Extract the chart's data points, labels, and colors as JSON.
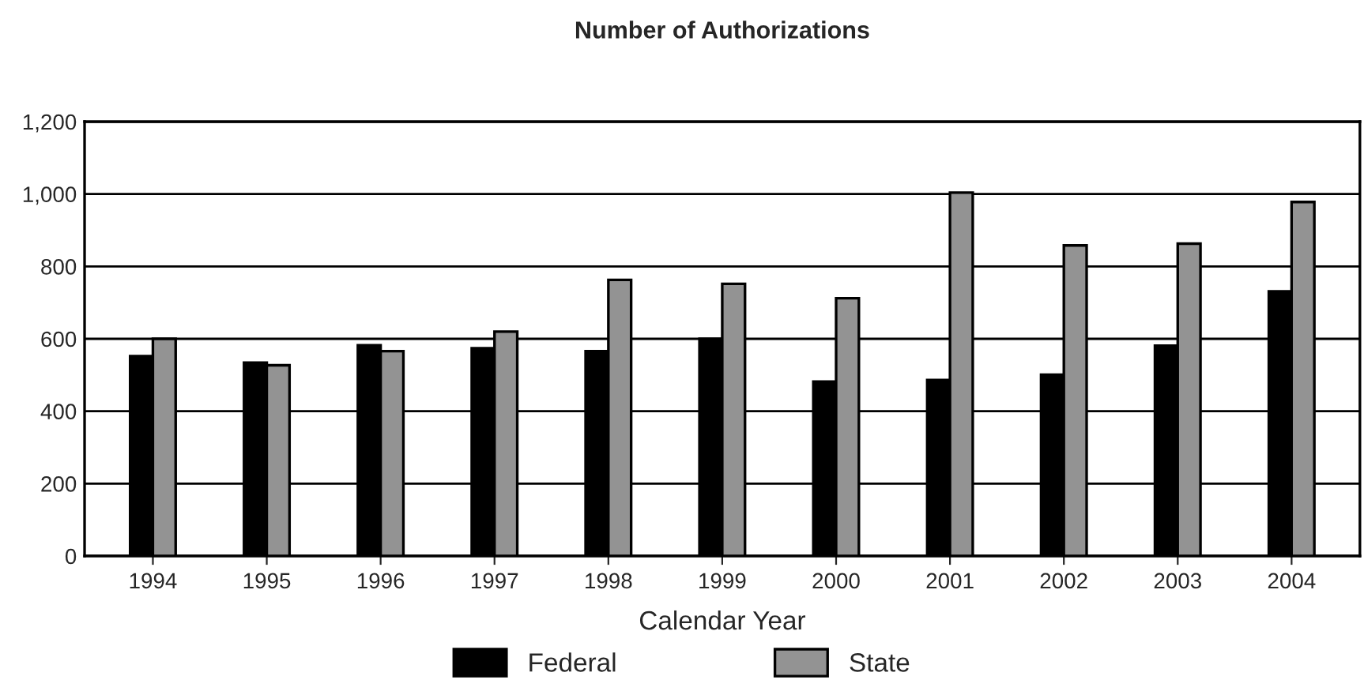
{
  "chart_data": {
    "type": "bar",
    "title": "Number of Authorizations",
    "xlabel": "Calendar Year",
    "categories": [
      "1994",
      "1995",
      "1996",
      "1997",
      "1998",
      "1999",
      "2000",
      "2001",
      "2002",
      "2003",
      "2004"
    ],
    "series": [
      {
        "name": "Federal",
        "color": "#000000",
        "values": [
          552,
          534,
          582,
          574,
          566,
          600,
          482,
          486,
          501,
          581,
          731
        ]
      },
      {
        "name": "State",
        "color": "#939393",
        "values": [
          600,
          527,
          566,
          620,
          763,
          752,
          712,
          1004,
          858,
          863,
          978
        ]
      }
    ],
    "ylim": [
      0,
      1200
    ],
    "yticks": [
      0,
      {
        "value": 200,
        "label": "200"
      },
      {
        "value": 400,
        "label": "400"
      },
      {
        "value": 600,
        "label": "600"
      },
      {
        "value": 800,
        "label": "800"
      },
      {
        "value": 1000,
        "label": "1,000"
      },
      {
        "value": 1200,
        "label": "1,200"
      }
    ],
    "grid": "y",
    "legend": "bottom"
  }
}
